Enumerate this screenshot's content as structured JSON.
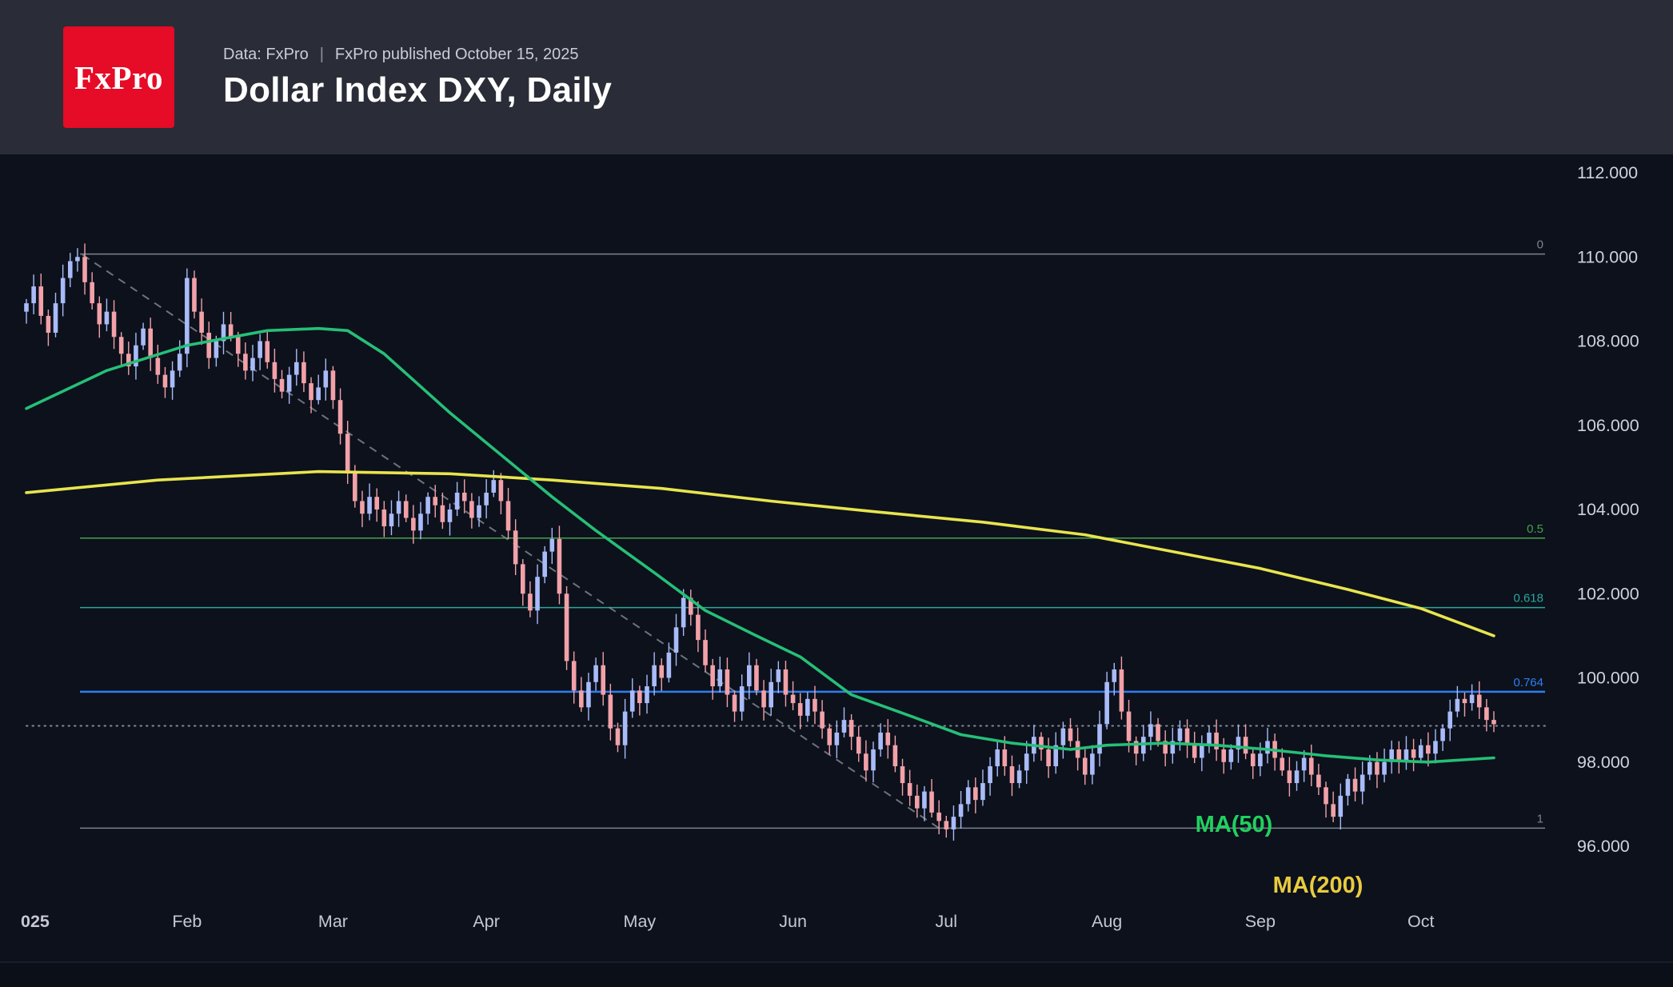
{
  "header": {
    "logo_text": "FxPro",
    "logo_bg": "#e60b26",
    "source_prefix": "Data: FxPro",
    "separator": "|",
    "published": "FxPro published October 15, 2025",
    "title": "Dollar Index DXY, Daily"
  },
  "chart_data": {
    "type": "candlestick",
    "title": "Dollar Index DXY, Daily",
    "instrument": "Dollar Index DXY",
    "timeframe": "Daily",
    "ylim": [
      96,
      112
    ],
    "y_ticks": [
      "112.000",
      "110.000",
      "108.000",
      "106.000",
      "104.000",
      "102.000",
      "100.000",
      "98.000",
      "96.000"
    ],
    "x_axis": {
      "partial_year_label": "025",
      "months": [
        {
          "label": "Feb",
          "index": 22
        },
        {
          "label": "Mar",
          "index": 42
        },
        {
          "label": "Apr",
          "index": 63
        },
        {
          "label": "May",
          "index": 84
        },
        {
          "label": "Jun",
          "index": 105
        },
        {
          "label": "Jul",
          "index": 126
        },
        {
          "label": "Aug",
          "index": 148
        },
        {
          "label": "Sep",
          "index": 169
        },
        {
          "label": "Oct",
          "index": 191
        }
      ]
    },
    "closes": [
      108.9,
      109.3,
      108.6,
      108.2,
      108.9,
      109.5,
      109.9,
      110.0,
      109.4,
      108.9,
      108.4,
      108.7,
      108.1,
      107.7,
      107.4,
      107.9,
      108.3,
      107.6,
      107.2,
      106.9,
      107.3,
      107.7,
      109.5,
      108.7,
      108.2,
      107.6,
      108.0,
      108.4,
      108.1,
      107.7,
      107.3,
      107.6,
      108.0,
      107.5,
      107.1,
      106.8,
      107.2,
      107.5,
      107.0,
      106.6,
      106.9,
      107.3,
      106.6,
      105.8,
      104.9,
      104.2,
      103.9,
      104.3,
      104.0,
      103.6,
      103.9,
      104.2,
      103.8,
      103.5,
      103.9,
      104.3,
      104.1,
      103.7,
      104.0,
      104.4,
      104.2,
      103.8,
      104.1,
      104.4,
      104.7,
      104.2,
      103.5,
      102.7,
      102.0,
      101.6,
      102.4,
      103.0,
      103.3,
      102.0,
      100.4,
      99.7,
      99.3,
      99.9,
      100.3,
      99.6,
      98.8,
      98.4,
      99.2,
      99.7,
      99.4,
      99.8,
      100.3,
      100.0,
      100.6,
      101.2,
      101.9,
      101.5,
      100.9,
      100.3,
      99.8,
      100.2,
      99.6,
      99.2,
      99.8,
      100.3,
      99.7,
      99.3,
      99.9,
      100.2,
      99.6,
      99.4,
      99.1,
      99.5,
      99.2,
      98.8,
      98.4,
      98.7,
      99.0,
      98.6,
      98.2,
      97.8,
      98.3,
      98.7,
      98.4,
      97.9,
      97.5,
      97.2,
      96.9,
      97.3,
      96.8,
      96.6,
      96.4,
      96.7,
      97.0,
      97.4,
      97.1,
      97.5,
      97.9,
      98.3,
      97.9,
      97.5,
      97.8,
      98.2,
      98.6,
      98.3,
      97.9,
      98.4,
      98.8,
      98.5,
      98.1,
      97.7,
      98.2,
      98.9,
      99.9,
      100.2,
      99.2,
      98.5,
      98.2,
      98.6,
      98.9,
      98.5,
      98.2,
      98.5,
      98.8,
      98.4,
      98.1,
      98.4,
      98.7,
      98.3,
      98.0,
      98.3,
      98.6,
      98.2,
      97.9,
      98.2,
      98.5,
      98.1,
      97.8,
      97.5,
      97.8,
      98.1,
      97.7,
      97.4,
      97.0,
      96.7,
      97.2,
      97.6,
      97.3,
      97.7,
      98.0,
      97.7,
      98.0,
      98.3,
      98.0,
      98.3,
      98.1,
      98.4,
      98.2,
      98.5,
      98.8,
      99.2,
      99.5,
      99.4,
      99.6,
      99.3,
      99.0,
      98.9
    ],
    "candle_colors": {
      "up": "#a9bbf8",
      "down": "#f2a1a8"
    },
    "ma50": {
      "label": "MA(50)",
      "color": "#26bf77",
      "label_color": "#21d05f",
      "points": [
        [
          0,
          106.4
        ],
        [
          11,
          107.3
        ],
        [
          22,
          107.9
        ],
        [
          33,
          108.25
        ],
        [
          40,
          108.3
        ],
        [
          44,
          108.25
        ],
        [
          49,
          107.7
        ],
        [
          58,
          106.3
        ],
        [
          65,
          105.3
        ],
        [
          72,
          104.3
        ],
        [
          78,
          103.5
        ],
        [
          86,
          102.5
        ],
        [
          93,
          101.6
        ],
        [
          100,
          101.0
        ],
        [
          106,
          100.5
        ],
        [
          113,
          99.6
        ],
        [
          121,
          99.1
        ],
        [
          128,
          98.65
        ],
        [
          135,
          98.45
        ],
        [
          143,
          98.3
        ],
        [
          148,
          98.4
        ],
        [
          156,
          98.45
        ],
        [
          163,
          98.4
        ],
        [
          170,
          98.3
        ],
        [
          178,
          98.15
        ],
        [
          185,
          98.05
        ],
        [
          192,
          98.0
        ],
        [
          201,
          98.1
        ]
      ]
    },
    "ma200": {
      "label": "MA(200)",
      "color": "#e8e44e",
      "label_color": "#e9cb3e",
      "points": [
        [
          0,
          104.4
        ],
        [
          18,
          104.7
        ],
        [
          40,
          104.9
        ],
        [
          58,
          104.85
        ],
        [
          72,
          104.7
        ],
        [
          87,
          104.5
        ],
        [
          102,
          104.2
        ],
        [
          116,
          103.95
        ],
        [
          131,
          103.7
        ],
        [
          145,
          103.4
        ],
        [
          157,
          103.0
        ],
        [
          169,
          102.6
        ],
        [
          181,
          102.1
        ],
        [
          191,
          101.65
        ],
        [
          201,
          101.0
        ]
      ]
    },
    "fib_levels": [
      {
        "label": "0",
        "price": 110.07,
        "color": "#7d838e",
        "width": 1.5
      },
      {
        "label": "0.5",
        "price": 103.32,
        "color": "#46a04c",
        "width": 1.5
      },
      {
        "label": "0.618",
        "price": 101.67,
        "color": "#2aa79b",
        "width": 1.5
      },
      {
        "label": "0.764",
        "price": 99.67,
        "color": "#2f7ef2",
        "width": 2.5
      },
      {
        "label": "1",
        "price": 96.43,
        "color": "#7d838e",
        "width": 1.5
      }
    ],
    "trendline": {
      "from": [
        7.7,
        110.05
      ],
      "to": [
        125,
        96.43
      ],
      "color": "#8e939d",
      "dash": "10 8"
    },
    "current_price_line": {
      "price": 98.86,
      "color": "#9298a4"
    }
  }
}
